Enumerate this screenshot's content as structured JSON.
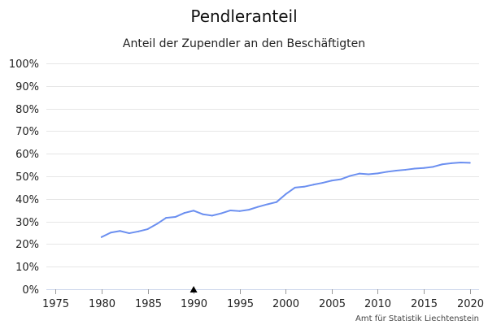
{
  "chart_data": {
    "type": "line",
    "title": "Pendleranteil",
    "subtitle": "Anteil der Zupendler an den Beschäftigten",
    "source": "Amt für Statistik Liechtenstein",
    "xlim": [
      1974,
      2021
    ],
    "ylim": [
      0,
      100
    ],
    "x_ticks": [
      1975,
      1980,
      1985,
      1990,
      1995,
      2000,
      2005,
      2010,
      2015,
      2020
    ],
    "x_tick_labels": [
      "1975",
      "1980",
      "1985",
      "1990",
      "1995",
      "2000",
      "2005",
      "2010",
      "2015",
      "2020"
    ],
    "y_ticks": [
      0,
      10,
      20,
      30,
      40,
      50,
      60,
      70,
      80,
      90,
      100
    ],
    "y_tick_labels": [
      "0%",
      "10%",
      "20%",
      "30%",
      "40%",
      "50%",
      "60%",
      "70%",
      "80%",
      "90%",
      "100%"
    ],
    "grid": true,
    "marker_year": 1990,
    "marker_icon": "triangle-up-icon",
    "series_color": "#6b8ff0",
    "x": [
      1980,
      1981,
      1982,
      1983,
      1984,
      1985,
      1986,
      1987,
      1988,
      1989,
      1990,
      1991,
      1992,
      1993,
      1994,
      1995,
      1996,
      1997,
      1998,
      1999,
      2000,
      2001,
      2002,
      2003,
      2004,
      2005,
      2006,
      2007,
      2008,
      2009,
      2010,
      2011,
      2012,
      2013,
      2014,
      2015,
      2016,
      2017,
      2018,
      2019,
      2020
    ],
    "values": [
      23.1,
      25.1,
      25.8,
      24.8,
      25.6,
      26.6,
      28.9,
      31.6,
      32.0,
      33.8,
      34.8,
      33.2,
      32.6,
      33.6,
      34.9,
      34.6,
      35.2,
      36.5,
      37.6,
      38.6,
      42.1,
      45.0,
      45.4,
      46.3,
      47.1,
      48.1,
      48.7,
      50.2,
      51.2,
      50.9,
      51.3,
      52.0,
      52.5,
      52.9,
      53.4,
      53.7,
      54.2,
      55.3,
      55.8,
      56.1,
      56.0
    ]
  }
}
